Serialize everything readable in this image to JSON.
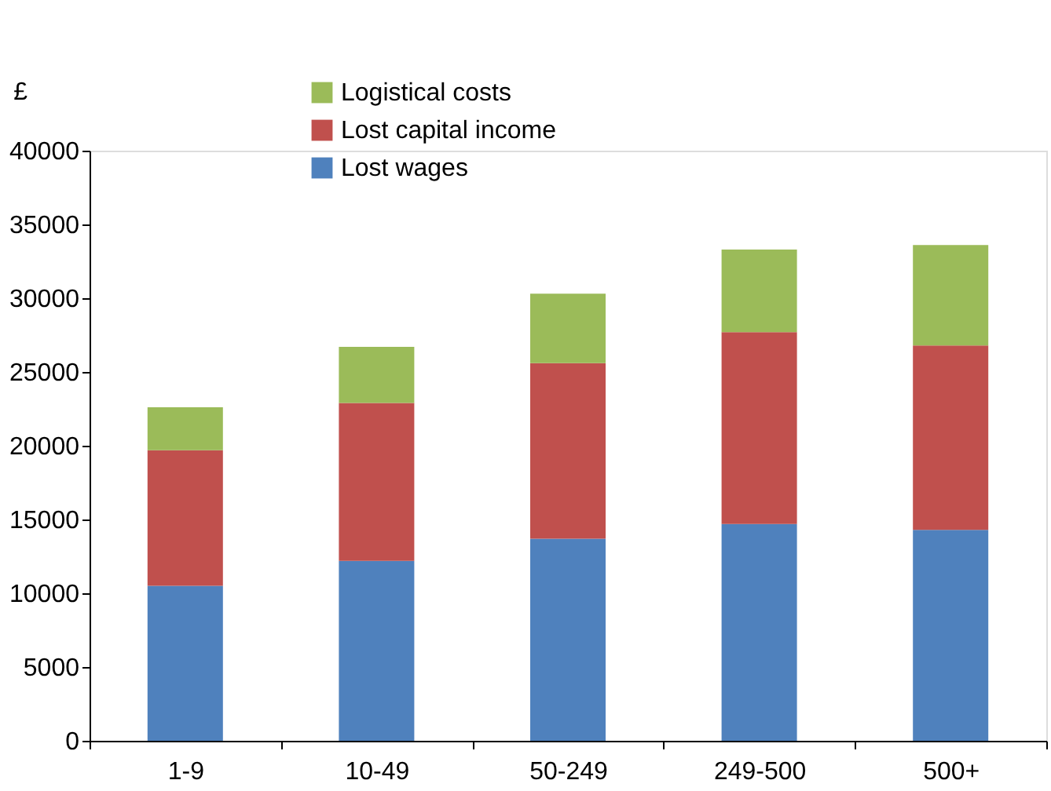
{
  "chart_data": {
    "type": "bar",
    "stacked": true,
    "ylabel": "£",
    "categories": [
      "1-9",
      "10-49",
      "50-249",
      "249-500",
      "500+"
    ],
    "series": [
      {
        "name": "Lost wages",
        "color": "#4f81bd",
        "values": [
          10500,
          12200,
          13700,
          14700,
          14300
        ]
      },
      {
        "name": "Lost capital income",
        "color": "#c0504d",
        "values": [
          9200,
          10700,
          11900,
          13000,
          12500
        ]
      },
      {
        "name": "Logistical costs",
        "color": "#9bbb59",
        "values": [
          2900,
          3800,
          4700,
          5600,
          6800
        ]
      }
    ],
    "ylim": [
      0,
      40000
    ],
    "yticks": [
      0,
      5000,
      10000,
      15000,
      20000,
      25000,
      30000,
      35000,
      40000
    ],
    "grid": false,
    "legend": "top"
  }
}
